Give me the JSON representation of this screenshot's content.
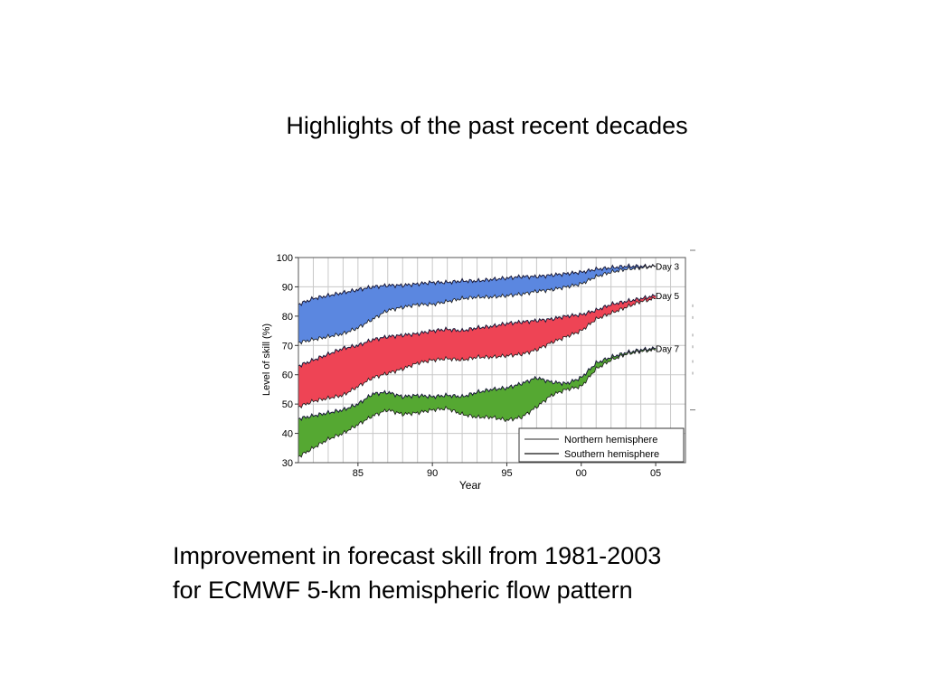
{
  "slide": {
    "title": "Highlights of the past recent decades",
    "caption_lines": [
      "Improvement in forecast skill from 1981-2003",
      "for ECMWF 5-km hemispheric flow pattern"
    ]
  },
  "chart_data": {
    "type": "area",
    "xlabel": "Year",
    "ylabel": "Level of skill (%)",
    "xlim": [
      1981,
      2007
    ],
    "ylim": [
      30,
      100
    ],
    "x_ticks": [
      1985,
      1990,
      1995,
      2000,
      2005
    ],
    "x_tick_labels": [
      "85",
      "90",
      "95",
      "00",
      "05"
    ],
    "y_ticks": [
      30,
      40,
      50,
      60,
      70,
      80,
      90,
      100
    ],
    "grid": true,
    "legend_position": "bottom-right",
    "legend": [
      "Northern hemisphere",
      "Southern hemisphere"
    ],
    "x": [
      1981,
      1982,
      1983,
      1984,
      1985,
      1986,
      1987,
      1988,
      1989,
      1990,
      1991,
      1992,
      1993,
      1994,
      1995,
      1996,
      1997,
      1998,
      1999,
      2000,
      2001,
      2002,
      2003,
      2004,
      2005
    ],
    "series": [
      {
        "name": "Day 3",
        "color": "#5b87e0",
        "northern": [
          84,
          86,
          87,
          88,
          89,
          90,
          90.5,
          90.5,
          91,
          91.5,
          91.5,
          92,
          92,
          92.5,
          93,
          93.5,
          93.5,
          94,
          94.5,
          95,
          96,
          96.5,
          97,
          97,
          97
        ],
        "southern": [
          71,
          72,
          73,
          74,
          76,
          79,
          82,
          83,
          84,
          84,
          85,
          86,
          86.5,
          86.5,
          87,
          87.5,
          88.5,
          89,
          90,
          91,
          93.5,
          95,
          96,
          96.5,
          97
        ]
      },
      {
        "name": "Day 5",
        "color": "#ee4455",
        "northern": [
          63,
          65,
          67,
          69,
          70,
          72,
          73,
          73.5,
          74,
          75,
          75.5,
          75,
          76,
          76.5,
          77.5,
          78,
          78.5,
          79,
          80,
          80.5,
          82,
          84,
          85,
          86,
          87
        ],
        "southern": [
          49,
          51,
          52,
          53,
          56,
          59,
          60.5,
          62,
          64,
          65,
          65.5,
          65,
          66,
          66,
          66.5,
          67,
          68.5,
          71,
          73,
          75,
          79,
          81,
          83,
          85,
          86
        ]
      },
      {
        "name": "Day 7",
        "color": "#55a832",
        "northern": [
          45,
          46,
          47,
          48,
          50,
          53.5,
          54,
          52.5,
          53,
          52.5,
          53,
          52.5,
          54,
          55,
          55.5,
          57,
          59,
          57.5,
          57,
          59,
          64,
          66,
          67.5,
          68.5,
          69
        ],
        "southern": [
          32,
          35,
          38,
          40,
          43,
          46,
          48,
          46.5,
          47,
          48,
          48.5,
          46.5,
          45.5,
          45.5,
          44.5,
          45.5,
          49,
          53,
          55,
          56,
          62,
          65,
          67,
          68,
          68.5
        ]
      }
    ]
  }
}
